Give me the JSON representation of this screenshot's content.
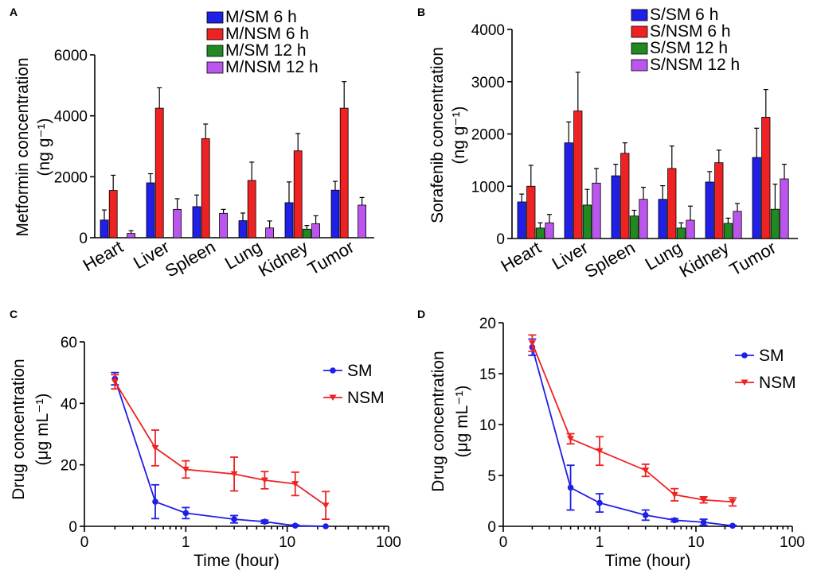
{
  "chart_data": [
    {
      "panel": "A",
      "type": "bar",
      "title": "",
      "ylabel": [
        "Metformin concentration",
        "(ng g⁻¹)"
      ],
      "xlabel": "",
      "ylim": [
        0,
        6000
      ],
      "yticks": [
        "0",
        "2000",
        "4000",
        "6000"
      ],
      "categories": [
        "Heart",
        "Liver",
        "Spleen",
        "Lung",
        "Kidney",
        "Tumor"
      ],
      "series": [
        {
          "name": "M/SM 6 h",
          "color": "#1f1fe6",
          "values": [
            580,
            1800,
            1020,
            560,
            1150,
            1560
          ],
          "errors": [
            330,
            300,
            380,
            250,
            680,
            290
          ]
        },
        {
          "name": "M/NSM 6 h",
          "color": "#ee2222",
          "values": [
            1550,
            4250,
            3250,
            1880,
            2850,
            4250
          ],
          "errors": [
            500,
            670,
            480,
            600,
            570,
            870
          ]
        },
        {
          "name": "M/SM 12 h",
          "color": "#228822",
          "values": [
            0,
            0,
            0,
            0,
            280,
            0
          ],
          "errors": [
            0,
            0,
            0,
            0,
            120,
            0
          ]
        },
        {
          "name": "M/NSM 12 h",
          "color": "#bb55ee",
          "values": [
            140,
            930,
            800,
            320,
            460,
            1070
          ],
          "errors": [
            90,
            350,
            130,
            230,
            260,
            250
          ]
        }
      ]
    },
    {
      "panel": "B",
      "type": "bar",
      "title": "",
      "ylabel": [
        "Sorafenib concentration",
        "(ng g⁻¹)"
      ],
      "xlabel": "",
      "ylim": [
        0,
        4000
      ],
      "yticks": [
        "0",
        "1000",
        "2000",
        "3000",
        "4000"
      ],
      "categories": [
        "Heart",
        "Liver",
        "Spleen",
        "Lung",
        "Kidney",
        "Tumor"
      ],
      "series": [
        {
          "name": "S/SM 6 h",
          "color": "#1f1fe6",
          "values": [
            700,
            1830,
            1200,
            750,
            1080,
            1550
          ],
          "errors": [
            150,
            400,
            220,
            260,
            200,
            560
          ]
        },
        {
          "name": "S/NSM 6 h",
          "color": "#ee2222",
          "values": [
            1000,
            2440,
            1630,
            1340,
            1450,
            2320
          ],
          "errors": [
            400,
            740,
            200,
            430,
            240,
            530
          ]
        },
        {
          "name": "S/SM 12 h",
          "color": "#228822",
          "values": [
            200,
            640,
            430,
            200,
            290,
            560
          ],
          "errors": [
            100,
            300,
            110,
            100,
            100,
            480
          ]
        },
        {
          "name": "S/NSM 12 h",
          "color": "#bb55ee",
          "values": [
            300,
            1060,
            750,
            350,
            520,
            1140
          ],
          "errors": [
            160,
            280,
            230,
            270,
            150,
            280
          ]
        }
      ]
    },
    {
      "panel": "C",
      "type": "line",
      "xscale": "log",
      "title": "",
      "xlabel": "Time (hour)",
      "ylabel": [
        "Drug concentration",
        "(μg mL⁻¹)"
      ],
      "ylim": [
        0,
        60
      ],
      "xlim": [
        0.1,
        100
      ],
      "yticks": [
        "0",
        "20",
        "40",
        "60"
      ],
      "xtick_values": [
        0.1,
        1,
        10,
        100
      ],
      "xticks": [
        "0",
        "1",
        "10",
        "100"
      ],
      "series": [
        {
          "name": "SM",
          "color": "#1f1fe6",
          "marker": "circle",
          "x": [
            0.2,
            0.5,
            1,
            3,
            6,
            12,
            24
          ],
          "y": [
            48,
            8,
            4.3,
            2.3,
            1.5,
            0.2,
            0
          ],
          "errors": [
            2,
            5.5,
            1.8,
            1.2,
            0.5,
            0.3,
            0
          ]
        },
        {
          "name": "NSM",
          "color": "#ee2222",
          "marker": "triangle-down",
          "x": [
            0.2,
            0.5,
            1,
            3,
            6,
            12,
            24
          ],
          "y": [
            47,
            25.5,
            18.5,
            17,
            15,
            13.8,
            6.8
          ],
          "errors": [
            2.3,
            5.8,
            2.8,
            5.5,
            2.8,
            3.8,
            4.5
          ]
        }
      ]
    },
    {
      "panel": "D",
      "type": "line",
      "xscale": "log",
      "title": "",
      "xlabel": "Time (hour)",
      "ylabel": [
        "Drug concentration",
        "(μg mL⁻¹)"
      ],
      "ylim": [
        0,
        20
      ],
      "xlim": [
        0.1,
        100
      ],
      "yticks": [
        "0",
        "5",
        "10",
        "15",
        "20"
      ],
      "xtick_values": [
        0.1,
        1,
        10,
        100
      ],
      "xticks": [
        "0",
        "1",
        "10",
        "100"
      ],
      "series": [
        {
          "name": "SM",
          "color": "#1f1fe6",
          "marker": "circle",
          "x": [
            0.2,
            0.5,
            1,
            3,
            6,
            12,
            24
          ],
          "y": [
            17.6,
            3.8,
            2.3,
            1.1,
            0.6,
            0.4,
            0.05
          ],
          "errors": [
            0.8,
            2.2,
            0.9,
            0.5,
            0.15,
            0.3,
            0.05
          ]
        },
        {
          "name": "NSM",
          "color": "#ee2222",
          "marker": "triangle-down",
          "x": [
            0.2,
            0.5,
            1,
            3,
            6,
            12,
            24
          ],
          "y": [
            18.0,
            8.6,
            7.4,
            5.5,
            3.1,
            2.6,
            2.4
          ],
          "errors": [
            0.8,
            0.5,
            1.4,
            0.6,
            0.6,
            0.3,
            0.4
          ]
        }
      ]
    }
  ]
}
